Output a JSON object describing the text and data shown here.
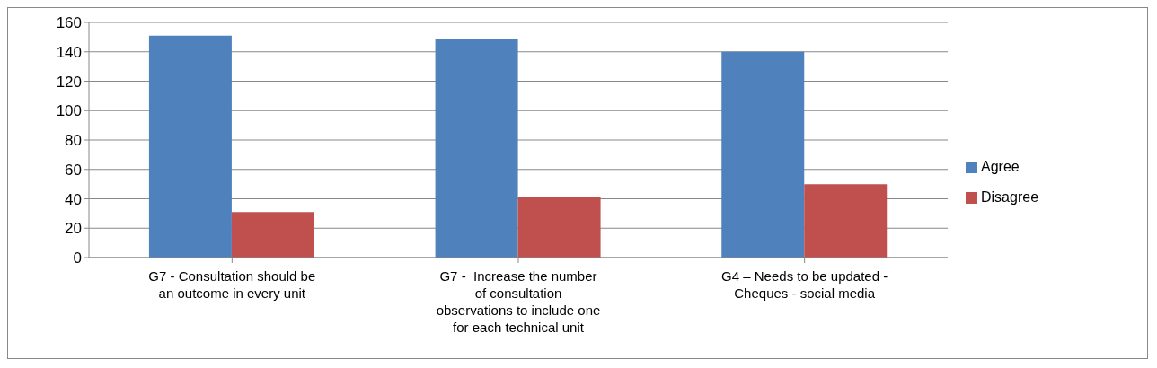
{
  "chart_data": {
    "type": "bar",
    "categories": [
      "G7 - Consultation should be an outcome in every unit",
      "G7 -  Increase the number of consultation observations to include one for each technical unit",
      "G4 – Needs to be updated - Cheques - social media"
    ],
    "series": [
      {
        "name": "Agree",
        "color": "#4f81bd",
        "values": [
          151,
          149,
          140
        ]
      },
      {
        "name": "Disagree",
        "color": "#c0504d",
        "values": [
          31,
          41,
          50
        ]
      }
    ],
    "ylim": [
      0,
      160
    ],
    "yticks": [
      0,
      20,
      40,
      60,
      80,
      100,
      120,
      140,
      160
    ],
    "grid": "y",
    "legend": "right"
  }
}
